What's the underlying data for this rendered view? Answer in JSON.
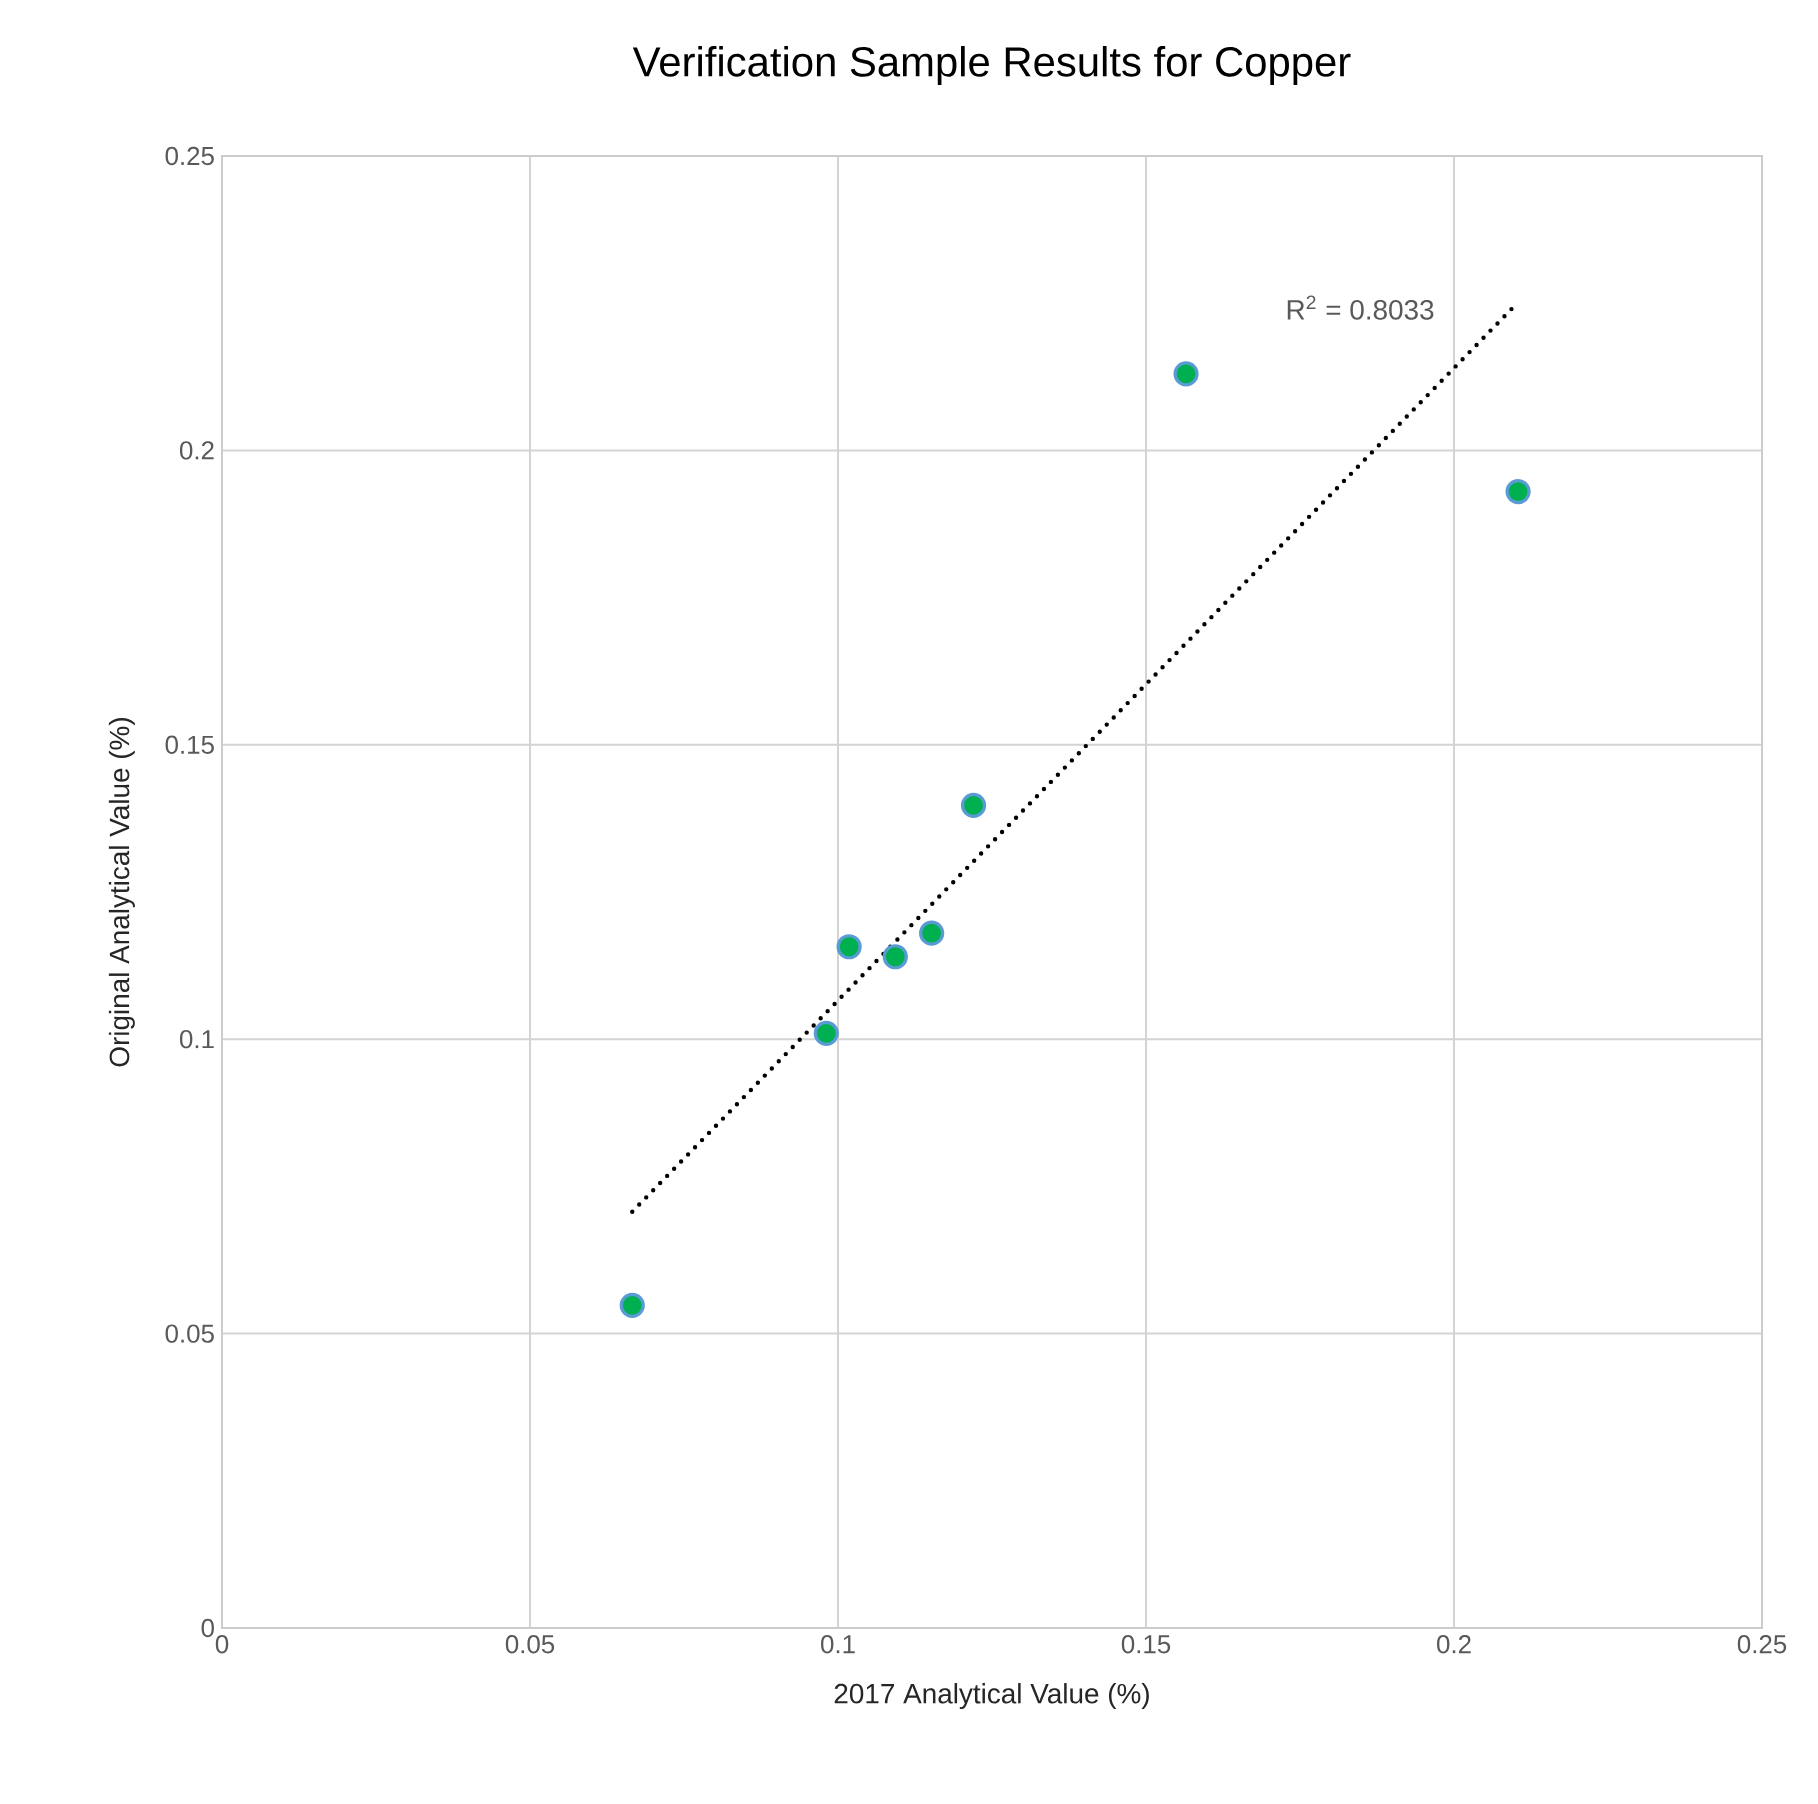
{
  "chart_data": {
    "type": "scatter",
    "title": "Verification Sample Results for Copper",
    "xlabel": "2017 Analytical Value (%)",
    "ylabel": "Original Analytical Value (%)",
    "series": [
      {
        "color": "#00b050",
        "marker": "circle",
        "x": [
          0.0666,
          0.0981,
          0.1018,
          0.1093,
          0.1152,
          0.122,
          0.1565,
          0.2104
        ],
        "values": [
          0.0548,
          0.101,
          0.1157,
          0.114,
          0.118,
          0.1397,
          0.213,
          0.193
        ]
      },
      {
        "type": "line",
        "color": "#000000",
        "line_style": "dotted",
        "marker": "none",
        "x": [
          0.0666,
          0.2097
        ],
        "values": [
          0.0707,
          0.2244
        ]
      }
    ],
    "annotations": [
      "R$^{2}$ = 0.8033"
    ],
    "xlim": [
      0,
      0.25
    ],
    "ylim": [
      0,
      0.25
    ],
    "xticks": [
      0,
      0.05,
      0.1,
      0.15,
      0.2,
      0.25
    ],
    "yticks": [
      0,
      0.05,
      0.1,
      0.15,
      0.2,
      0.25
    ],
    "grid": true
  }
}
